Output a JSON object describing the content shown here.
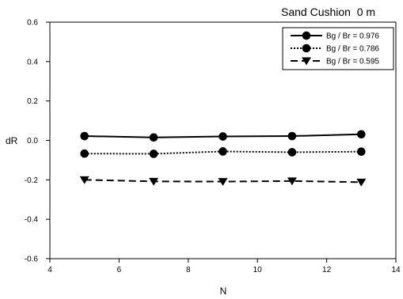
{
  "chart_data": {
    "type": "line",
    "title": "Sand Cushion  0 m",
    "xlabel": "N",
    "ylabel": "dR",
    "xlim": [
      4,
      14
    ],
    "ylim": [
      -0.6,
      0.6
    ],
    "xticks": [
      4,
      6,
      8,
      10,
      12,
      14
    ],
    "yticks": [
      -0.6,
      -0.4,
      -0.2,
      0.0,
      0.2,
      0.4,
      0.6
    ],
    "x": [
      5,
      7,
      9,
      11,
      13
    ],
    "grid": false,
    "legend_position": "top-right",
    "series": [
      {
        "name": "Bg / Br = 0.976",
        "values": [
          0.022,
          0.015,
          0.02,
          0.022,
          0.031
        ],
        "line_style": "solid",
        "marker": "circle"
      },
      {
        "name": "Bg / Br = 0.786",
        "values": [
          -0.067,
          -0.068,
          -0.056,
          -0.06,
          -0.057
        ],
        "line_style": "dotted",
        "marker": "circle"
      },
      {
        "name": "Bg / Br = 0.595",
        "values": [
          -0.2,
          -0.208,
          -0.209,
          -0.206,
          -0.212
        ],
        "line_style": "dashed",
        "marker": "triangle-down"
      }
    ]
  }
}
